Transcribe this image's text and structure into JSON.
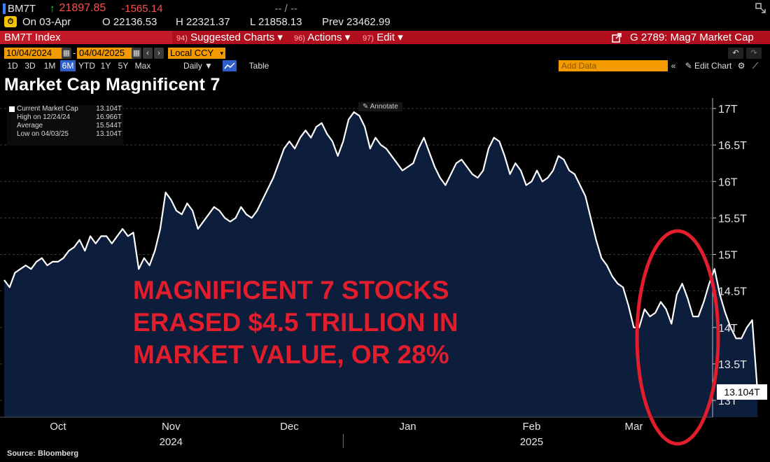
{
  "ticker": {
    "symbol": "BM7T",
    "arrow": "↑",
    "last": "21897.85",
    "change": "-1565.14",
    "misc": "-- / --"
  },
  "quote": {
    "on": "On 03-Apr",
    "open": "O 22136.53",
    "high": "H 22321.37",
    "low": "L 21858.13",
    "prev": "Prev 23462.99"
  },
  "menubar": {
    "index": "BM7T Index",
    "suggested_num": "94)",
    "suggested": "Suggested Charts ▾",
    "actions_num": "96)",
    "actions": "Actions ▾",
    "edit_num": "97)",
    "edit": "Edit ▾",
    "graph": "G 2789: Mag7 Market Cap"
  },
  "range": {
    "start": "10/04/2024",
    "end": "04/04/2025",
    "currency": "Local CCY"
  },
  "periods": [
    "1D",
    "3D",
    "1M",
    "6M",
    "YTD",
    "1Y",
    "5Y",
    "Max"
  ],
  "selected_period": "6M",
  "frequency": "Daily ▼",
  "table_label": "Table",
  "add_data": "Add Data",
  "edit_chart": "Edit Chart",
  "annotate": "Annotate",
  "source": "Source: Bloomberg",
  "price_label": "13.104T",
  "callout": [
    "MAGNIFICENT 7 STOCKS",
    "ERASED $4.5 TRILLION IN",
    "MARKET VALUE, OR 28%"
  ],
  "colors": {
    "accent_red": "#e21d2c",
    "menu_red": "#b10f1d",
    "orange": "#f29a00",
    "area_fill": "#0d1d3c",
    "line": "#ffffff"
  },
  "chart_data": {
    "type": "area",
    "title": "Market Cap Magnificent 7",
    "series_name": "Current Market Cap",
    "legend": [
      {
        "label": "Current Market Cap",
        "value": "13.104T"
      },
      {
        "label": "High on 12/24/24",
        "value": "16.966T"
      },
      {
        "label": "Average",
        "value": "15.544T"
      },
      {
        "label": "Low on 04/03/25",
        "value": "13.104T"
      }
    ],
    "y_range": [
      13,
      17
    ],
    "y_ticks": [
      13,
      13.5,
      14,
      14.5,
      15,
      15.5,
      16,
      16.5,
      17
    ],
    "y_tick_labels": [
      "13T",
      "13.5T",
      "14T",
      "14.5T",
      "15T",
      "15.5T",
      "16T",
      "16.5T",
      "17T"
    ],
    "x_range": [
      0,
      128
    ],
    "month_ticks": [
      {
        "label": "Oct",
        "x": 10
      },
      {
        "label": "Nov",
        "x": 31
      },
      {
        "label": "Dec",
        "x": 53
      },
      {
        "label": "Jan",
        "x": 75
      },
      {
        "label": "Feb",
        "x": 98
      },
      {
        "label": "Mar",
        "x": 117
      }
    ],
    "year_labels": [
      {
        "label": "2024",
        "x": 31
      },
      {
        "label": "2025",
        "x": 98
      }
    ],
    "year_divider_x": 63,
    "values": [
      14.65,
      14.55,
      14.75,
      14.8,
      14.85,
      14.8,
      14.9,
      14.95,
      14.85,
      14.9,
      14.9,
      14.95,
      15.05,
      15.1,
      15.2,
      15.05,
      15.25,
      15.15,
      15.25,
      15.25,
      15.15,
      15.25,
      15.35,
      15.25,
      15.3,
      14.8,
      14.95,
      14.85,
      15.05,
      15.35,
      15.85,
      15.75,
      15.6,
      15.55,
      15.7,
      15.6,
      15.35,
      15.45,
      15.55,
      15.65,
      15.6,
      15.5,
      15.45,
      15.5,
      15.65,
      15.55,
      15.5,
      15.6,
      15.75,
      15.9,
      16.05,
      16.25,
      16.45,
      16.55,
      16.45,
      16.6,
      16.7,
      16.6,
      16.75,
      16.8,
      16.65,
      16.55,
      16.35,
      16.55,
      16.85,
      16.95,
      16.9,
      16.75,
      16.45,
      16.6,
      16.5,
      16.45,
      16.35,
      16.25,
      16.15,
      16.2,
      16.25,
      16.45,
      16.6,
      16.4,
      16.2,
      16.05,
      15.95,
      16.1,
      16.25,
      16.3,
      16.2,
      16.1,
      16.05,
      16.15,
      16.45,
      16.6,
      16.55,
      16.35,
      16.1,
      16.25,
      16.15,
      15.95,
      16.0,
      16.15,
      16.0,
      16.05,
      16.15,
      16.35,
      16.3,
      16.15,
      16.1,
      15.95,
      15.8,
      15.5,
      15.2,
      14.95,
      14.85,
      14.7,
      14.6,
      14.55,
      14.3,
      14.0,
      14.0,
      14.25,
      14.15,
      14.2,
      14.35,
      14.25,
      14.05,
      14.45,
      14.6,
      14.4,
      14.15,
      14.15,
      14.35,
      14.6,
      14.8,
      14.45,
      14.2,
      14.0,
      13.85,
      13.85,
      14.0,
      14.1,
      13.104
    ],
    "annotation": "red ellipse circling final decline"
  }
}
